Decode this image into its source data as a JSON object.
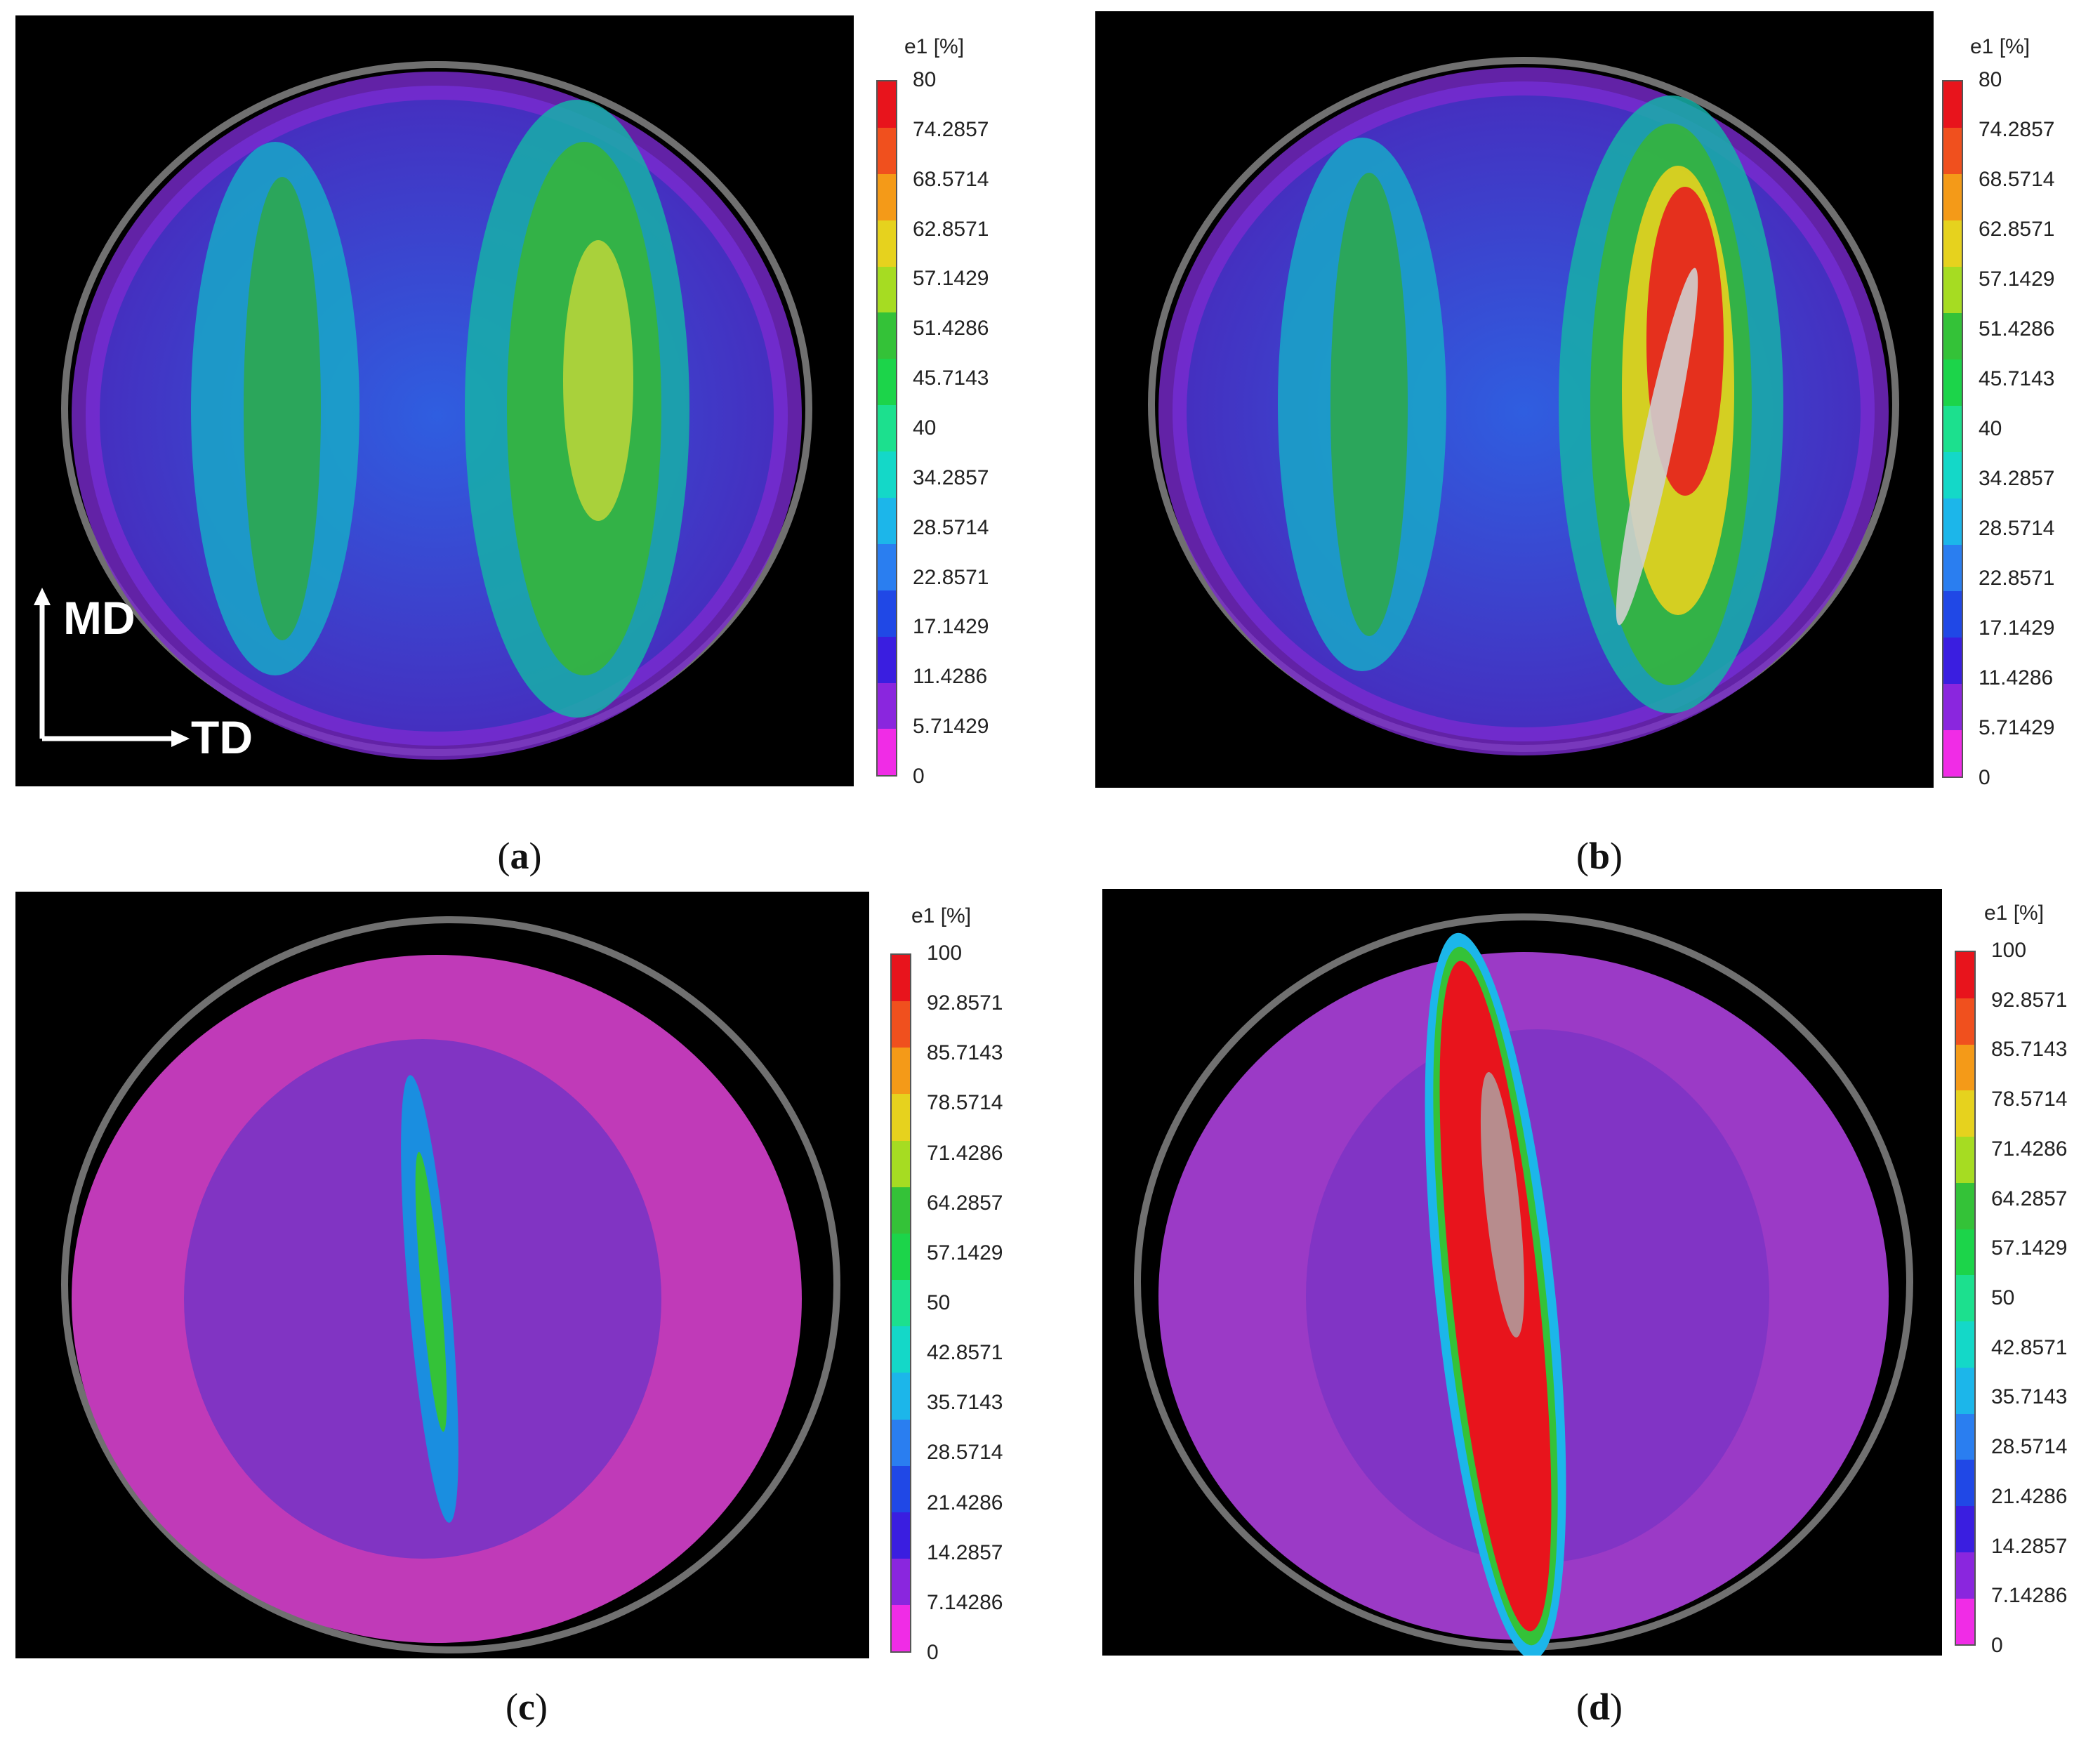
{
  "panels": [
    {
      "id": "a",
      "caption_label": "a",
      "scale_title": "e1 [%]",
      "ticks": [
        "80",
        "74.2857",
        "68.5714",
        "62.8571",
        "57.1429",
        "51.4286",
        "45.7143",
        "40",
        "34.2857",
        "28.5714",
        "22.8571",
        "17.1429",
        "11.4286",
        "5.71429",
        "0"
      ]
    },
    {
      "id": "b",
      "caption_label": "b",
      "scale_title": "e1 [%]",
      "ticks": [
        "80",
        "74.2857",
        "68.5714",
        "62.8571",
        "57.1429",
        "51.4286",
        "45.7143",
        "40",
        "34.2857",
        "28.5714",
        "22.8571",
        "17.1429",
        "11.4286",
        "5.71429",
        "0"
      ]
    },
    {
      "id": "c",
      "caption_label": "c",
      "scale_title": "e1 [%]",
      "ticks": [
        "100",
        "92.8571",
        "85.7143",
        "78.5714",
        "71.4286",
        "64.2857",
        "57.1429",
        "50",
        "42.8571",
        "35.7143",
        "28.5714",
        "21.4286",
        "14.2857",
        "7.14286",
        "0"
      ]
    },
    {
      "id": "d",
      "caption_label": "d",
      "scale_title": "e1 [%]",
      "ticks": [
        "100",
        "92.8571",
        "85.7143",
        "78.5714",
        "71.4286",
        "64.2857",
        "57.1429",
        "50",
        "42.8571",
        "35.7143",
        "28.5714",
        "21.4286",
        "14.2857",
        "7.14286",
        "0"
      ]
    }
  ],
  "axes": {
    "md_label": "MD",
    "td_label": "TD"
  },
  "colorbar_colors": [
    "#e8141c",
    "#f0501e",
    "#f49a18",
    "#e6d21e",
    "#a6dc22",
    "#34c238",
    "#1cd44a",
    "#1ce08e",
    "#14d8c8",
    "#1cb6ea",
    "#2a7ef0",
    "#2048e6",
    "#3a1ee0",
    "#8a26de",
    "#f02ce6"
  ]
}
